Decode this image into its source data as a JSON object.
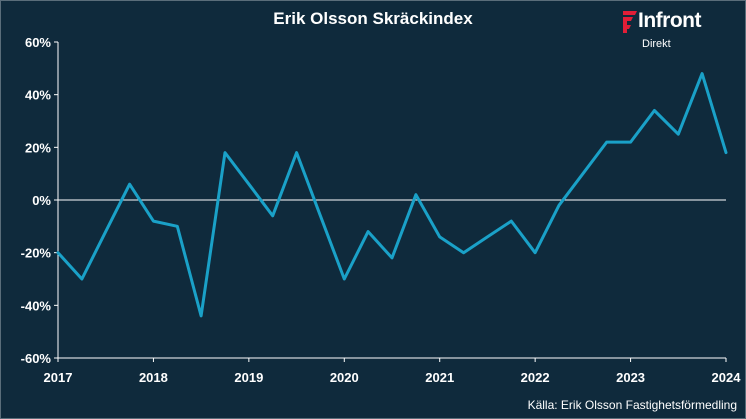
{
  "brand": {
    "name": "Infront",
    "sub": "Direkt",
    "accent_color": "#e21e37",
    "background_color": "#0f2a3c",
    "line_color": "#1aa1c8"
  },
  "source": "Källa:  Erik Olsson Fastighetsförmedling",
  "chart_data": {
    "type": "line",
    "title": "Erik Olsson Skräckindex",
    "xlabel": "",
    "ylabel": "",
    "x_range": [
      2017,
      2024
    ],
    "x_ticks": [
      2017,
      2018,
      2019,
      2020,
      2021,
      2022,
      2023,
      2024
    ],
    "x_tick_labels": [
      "2017",
      "2018",
      "2019",
      "2020",
      "2021",
      "2022",
      "2023",
      "2024"
    ],
    "ylim": [
      -60,
      60
    ],
    "y_ticks": [
      -60,
      -40,
      -20,
      0,
      20,
      40,
      60
    ],
    "y_tick_labels": [
      "-60%",
      "-40%",
      "-20%",
      "0%",
      "20%",
      "40%",
      "60%"
    ],
    "grid": false,
    "series": [
      {
        "name": "Erik Olsson Skräckindex",
        "x": [
          2017.0,
          2017.25,
          2017.5,
          2017.75,
          2018.0,
          2018.25,
          2018.5,
          2018.75,
          2019.0,
          2019.25,
          2019.5,
          2019.75,
          2020.0,
          2020.25,
          2020.5,
          2020.75,
          2021.0,
          2021.25,
          2021.5,
          2021.75,
          2022.0,
          2022.25,
          2022.5,
          2022.75,
          2023.0,
          2023.25,
          2023.5,
          2023.75,
          2024.0
        ],
        "y": [
          -20,
          -30,
          -12,
          6,
          -8,
          -10,
          -44,
          18,
          6,
          -6,
          18,
          -6,
          -30,
          -12,
          -22,
          2,
          -14,
          -20,
          -14,
          -8,
          -20,
          -2,
          10,
          22,
          22,
          34,
          25,
          48,
          18
        ]
      }
    ]
  }
}
